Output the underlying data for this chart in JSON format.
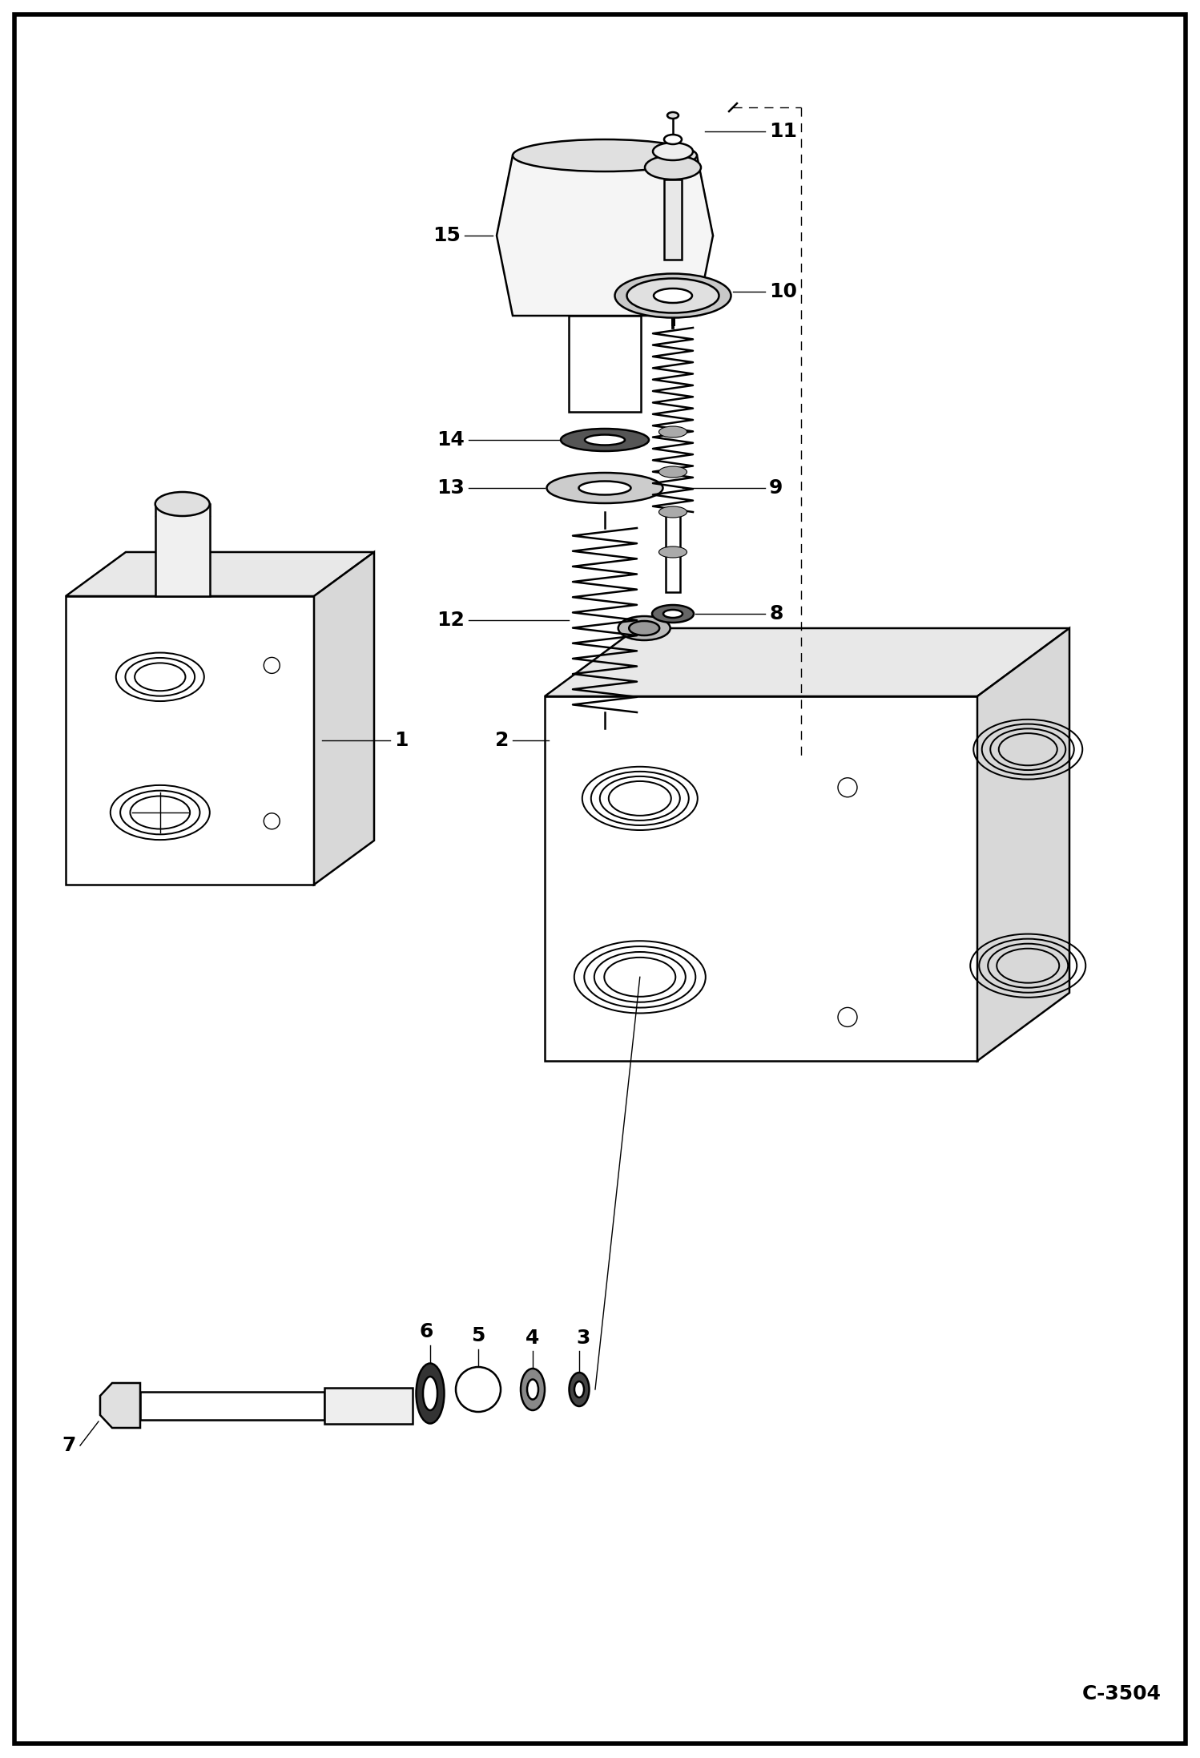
{
  "bg_color": "#ffffff",
  "line_color": "#000000",
  "figsize": [
    14.98,
    21.94
  ],
  "dpi": 100,
  "code": "C-3504",
  "lw_main": 1.8,
  "lw_thin": 1.0,
  "lw_border": 4.0
}
